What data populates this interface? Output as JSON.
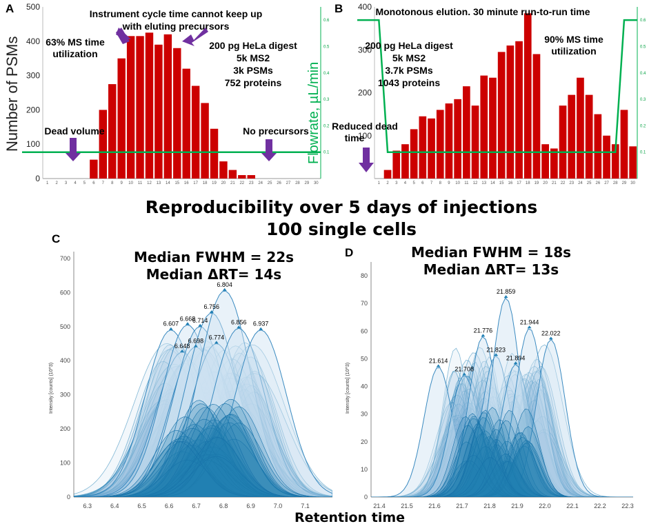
{
  "colors": {
    "bar": "#cc0000",
    "flow": "#00b050",
    "arrow": "#7030a0",
    "peak": "#1f7fb4"
  },
  "chart_data": [
    {
      "panel": "A",
      "type": "bar",
      "ylabel": "Number of PSMs",
      "y2label": "Flowrate, µL/min",
      "ylim": [
        0,
        500
      ],
      "y2lim": [
        0,
        0.65
      ],
      "yticks": [
        0,
        100,
        200,
        300,
        400,
        500
      ],
      "y2ticks": [
        "0.1",
        "0.2",
        "0.3",
        "0.4",
        "0.5",
        "0.6"
      ],
      "categories": [
        1,
        2,
        3,
        4,
        5,
        6,
        7,
        8,
        9,
        10,
        11,
        12,
        13,
        14,
        15,
        16,
        17,
        18,
        19,
        20,
        21,
        22,
        23,
        24,
        25,
        26,
        27,
        28,
        29,
        30
      ],
      "values": [
        0,
        0,
        0,
        0,
        0,
        55,
        200,
        275,
        350,
        415,
        415,
        425,
        390,
        420,
        380,
        320,
        270,
        220,
        145,
        50,
        25,
        10,
        10,
        0,
        0,
        0,
        0,
        0,
        0,
        0
      ],
      "flow": [
        0.1,
        0.1,
        0.1,
        0.1,
        0.1,
        0.1,
        0.1,
        0.1,
        0.1,
        0.1,
        0.1,
        0.1,
        0.1,
        0.1,
        0.1,
        0.1,
        0.1,
        0.1,
        0.1,
        0.1,
        0.1,
        0.1,
        0.1,
        0.1,
        0.1,
        0.1,
        0.1,
        0.1,
        0.1,
        0.1
      ],
      "annotations": {
        "top1": "Instrument cycle time cannot keep up",
        "top2": "with eluting precursors",
        "util1": "63% MS time",
        "util2": "utilization",
        "info1": "200 pg HeLa digest",
        "info2": "5k MS2",
        "info3": "3k PSMs",
        "info4": "752 proteins",
        "dead": "Dead volume",
        "noprec": "No precursors"
      }
    },
    {
      "panel": "B",
      "type": "bar",
      "ylim": [
        0,
        400
      ],
      "y2lim": [
        0,
        0.65
      ],
      "yticks": [
        100,
        200,
        300,
        400
      ],
      "y2ticks": [
        "0.1",
        "0.2",
        "0.3",
        "0.4",
        "0.5",
        "0.6"
      ],
      "categories": [
        1,
        2,
        3,
        4,
        5,
        6,
        7,
        8,
        9,
        10,
        11,
        12,
        13,
        14,
        15,
        16,
        17,
        18,
        19,
        20,
        21,
        22,
        23,
        24,
        25,
        26,
        27,
        28,
        29,
        30
      ],
      "values": [
        0,
        20,
        65,
        80,
        115,
        145,
        140,
        160,
        175,
        185,
        215,
        170,
        240,
        235,
        295,
        310,
        320,
        385,
        290,
        80,
        70,
        170,
        195,
        235,
        195,
        150,
        100,
        80,
        160,
        75
      ],
      "flow": [
        0.6,
        0.1,
        0.1,
        0.1,
        0.1,
        0.1,
        0.1,
        0.1,
        0.1,
        0.1,
        0.1,
        0.1,
        0.1,
        0.1,
        0.1,
        0.1,
        0.1,
        0.1,
        0.1,
        0.1,
        0.1,
        0.1,
        0.1,
        0.1,
        0.1,
        0.1,
        0.1,
        0.1,
        0.6,
        0.6
      ],
      "annotations": {
        "top": "Monotonous elution. 30 minute run-to-run time",
        "info1": "200 pg HeLa digest",
        "info2": "5k MS2",
        "info3": "3.7k PSMs",
        "info4": "1043 proteins",
        "util1": "90% MS time",
        "util2": "utilization",
        "dead1": "Reduced dead",
        "dead2": "time"
      }
    },
    {
      "panel": "C",
      "type": "area",
      "ylabel": "Intensity [counts] (10^3)",
      "xlim": [
        6.25,
        7.2
      ],
      "ylim": [
        0,
        720
      ],
      "xticks": [
        "6.3",
        "6.4",
        "6.5",
        "6.6",
        "6.7",
        "6.8",
        "6.9",
        "7.0",
        "7.1"
      ],
      "yticks": [
        "0",
        "100",
        "200",
        "300",
        "400",
        "500",
        "600",
        "700"
      ],
      "stat1": "Median FWHM = 22s",
      "stat2": "Median ΔRT= 14s",
      "peaks": [
        {
          "rt": 6.607,
          "height": 490,
          "label": "6.607"
        },
        {
          "rt": 6.648,
          "height": 425,
          "label": "6.648"
        },
        {
          "rt": 6.668,
          "height": 505,
          "label": "6.668"
        },
        {
          "rt": 6.698,
          "height": 440,
          "label": "6.698"
        },
        {
          "rt": 6.714,
          "height": 500,
          "label": "6.714"
        },
        {
          "rt": 6.756,
          "height": 540,
          "label": "6.756"
        },
        {
          "rt": 6.774,
          "height": 450,
          "label": "6.774"
        },
        {
          "rt": 6.804,
          "height": 605,
          "label": "6.804"
        },
        {
          "rt": 6.856,
          "height": 495,
          "label": "6.856"
        },
        {
          "rt": 6.937,
          "height": 490,
          "label": "6.937"
        }
      ]
    },
    {
      "panel": "D",
      "type": "area",
      "ylabel": "Intensity [counts] (10^3)",
      "xlim": [
        21.37,
        22.32
      ],
      "ylim": [
        0,
        85
      ],
      "xticks": [
        "21.4",
        "21.5",
        "21.6",
        "21.7",
        "21.8",
        "21.9",
        "22.0",
        "22.1",
        "22.2",
        "22.3"
      ],
      "yticks": [
        "0",
        "10",
        "20",
        "30",
        "40",
        "50",
        "60",
        "70",
        "80"
      ],
      "stat1": "Median FWHM = 18s",
      "stat2": "Median ΔRT= 13s",
      "peaks": [
        {
          "rt": 21.614,
          "height": 47,
          "label": "21.614"
        },
        {
          "rt": 21.708,
          "height": 44,
          "label": "21.708"
        },
        {
          "rt": 21.776,
          "height": 58,
          "label": "21.776"
        },
        {
          "rt": 21.823,
          "height": 51,
          "label": "21.823"
        },
        {
          "rt": 21.859,
          "height": 72,
          "label": "21.859"
        },
        {
          "rt": 21.894,
          "height": 48,
          "label": "21.894"
        },
        {
          "rt": 21.944,
          "height": 61,
          "label": "21.944"
        },
        {
          "rt": 22.022,
          "height": 57,
          "label": "22.022"
        }
      ]
    }
  ],
  "labels": {
    "panelA": "A",
    "panelB": "B",
    "panelC": "C",
    "panelD": "D",
    "headline1": "Reproducibility over 5 days of injections",
    "headline2": "100 single cells",
    "xaxis": "Retention time"
  }
}
